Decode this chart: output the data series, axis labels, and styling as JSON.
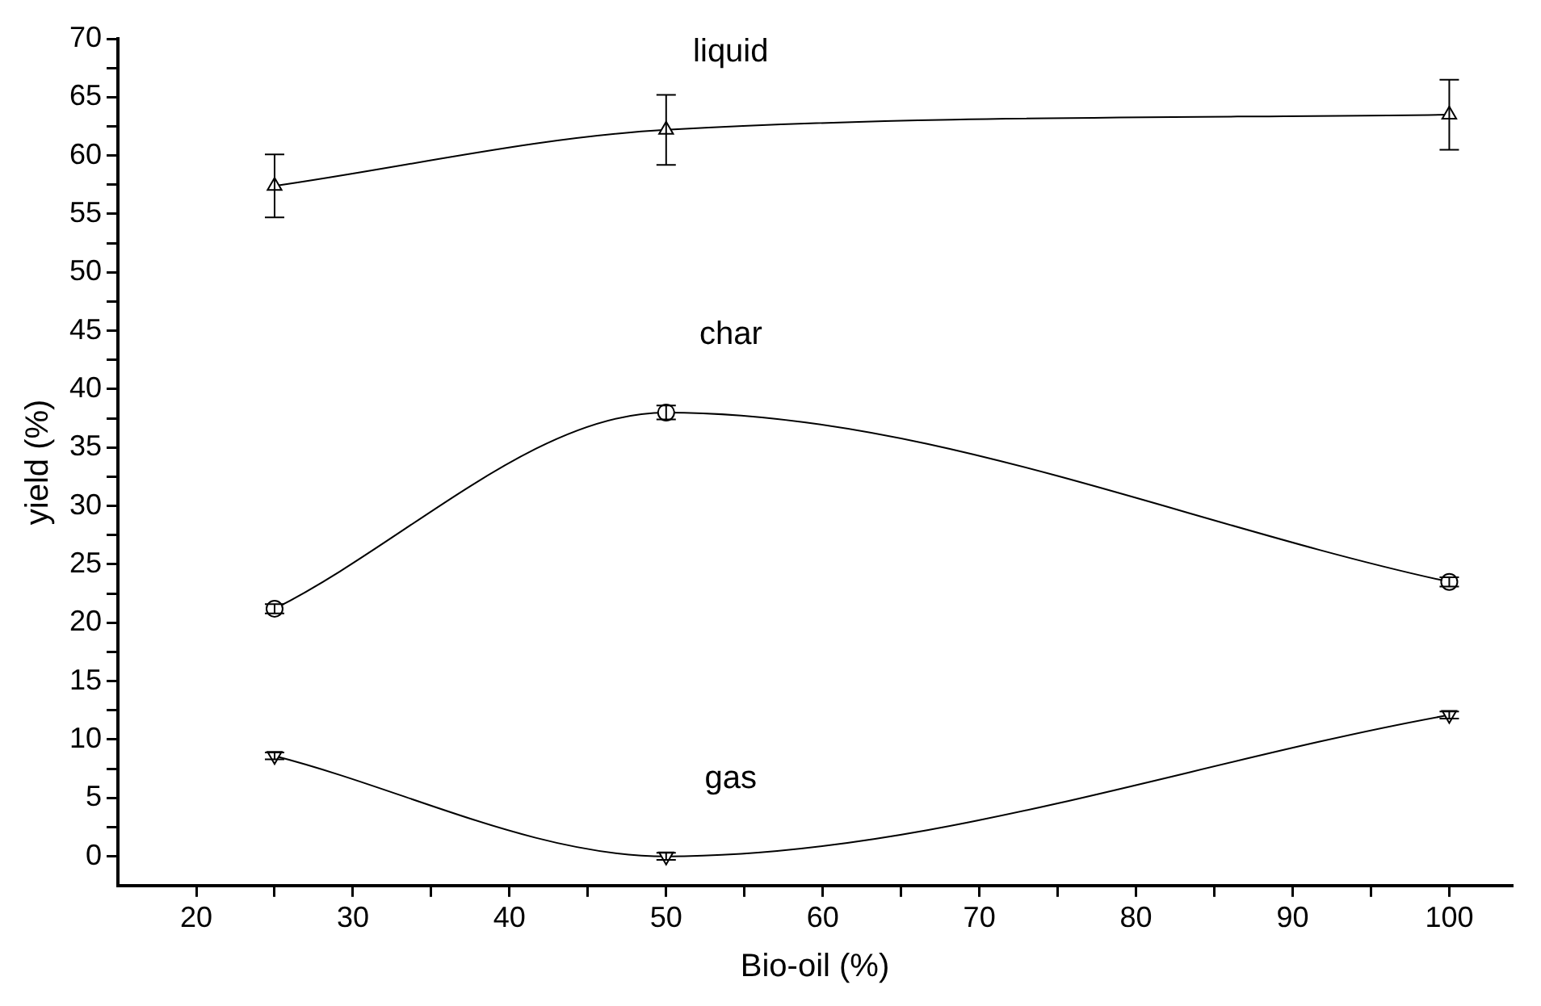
{
  "chart_data": {
    "type": "line",
    "xlabel": "Bio-oil (%)",
    "ylabel": "yield (%)",
    "x": [
      25,
      50,
      100
    ],
    "xlim": [
      15,
      104
    ],
    "xticks": [
      20,
      {
        "value": 25,
        "label": null
      },
      30,
      {
        "value": 35,
        "label": null
      },
      40,
      {
        "value": 45,
        "label": null
      },
      50,
      {
        "value": 55,
        "label": null
      },
      60,
      {
        "value": 65,
        "label": null
      },
      70,
      {
        "value": 75,
        "label": null
      },
      80,
      {
        "value": 85,
        "label": null
      },
      90,
      {
        "value": 95,
        "label": null
      },
      100
    ],
    "ylim": [
      -2.5,
      70
    ],
    "yticks": [
      0,
      {
        "value": 2.5,
        "label": null
      },
      5,
      {
        "value": 7.5,
        "label": null
      },
      10,
      {
        "value": 12.5,
        "label": null
      },
      15,
      {
        "value": 17.5,
        "label": null
      },
      20,
      {
        "value": 22.5,
        "label": null
      },
      25,
      {
        "value": 27.5,
        "label": null
      },
      30,
      {
        "value": 32.5,
        "label": null
      },
      35,
      {
        "value": 37.5,
        "label": null
      },
      40,
      {
        "value": 42.5,
        "label": null
      },
      45,
      {
        "value": 47.5,
        "label": null
      },
      50,
      {
        "value": 52.5,
        "label": null
      },
      55,
      {
        "value": 57.5,
        "label": null
      },
      60,
      {
        "value": 62.5,
        "label": null
      },
      65,
      {
        "value": 67.5,
        "label": null
      },
      70
    ],
    "grid": false,
    "legend": false,
    "series": [
      {
        "name": "liquid",
        "color": "#000000",
        "marker": "triangle",
        "values": [
          57.4,
          62.2,
          63.5
        ],
        "errors": [
          2.7,
          3,
          3
        ]
      },
      {
        "name": "char",
        "color": "#000000",
        "marker": "circle",
        "values": [
          21.2,
          38,
          23.5
        ],
        "errors": [
          0.4,
          0.6,
          0.4
        ]
      },
      {
        "name": "gas",
        "color": "#000000",
        "marker": "triangle-down",
        "values": [
          8.6,
          0,
          12.1
        ],
        "errors": [
          0.3,
          0.3,
          0.3
        ]
      }
    ]
  }
}
